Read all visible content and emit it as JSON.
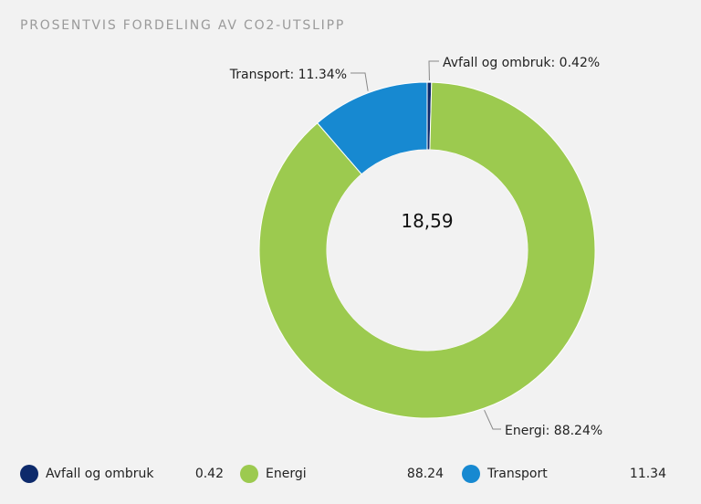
{
  "chart_data": {
    "type": "pie",
    "title": "PROSENTVIS FORDELING AV CO2-UTSLIPP",
    "center_label": "18,59",
    "categories": [
      "Avfall og ombruk",
      "Energi",
      "Transport"
    ],
    "values": [
      0.42,
      88.24,
      11.34
    ],
    "value_labels": [
      "0.42",
      "88.24",
      "11.34"
    ],
    "slice_labels": [
      "Avfall og ombruk: 0.42%",
      "Energi: 88.24%",
      "Transport: 11.34%"
    ],
    "colors": [
      "#0d2a6b",
      "#9cca4f",
      "#1789d1"
    ],
    "legend": "bottom"
  }
}
